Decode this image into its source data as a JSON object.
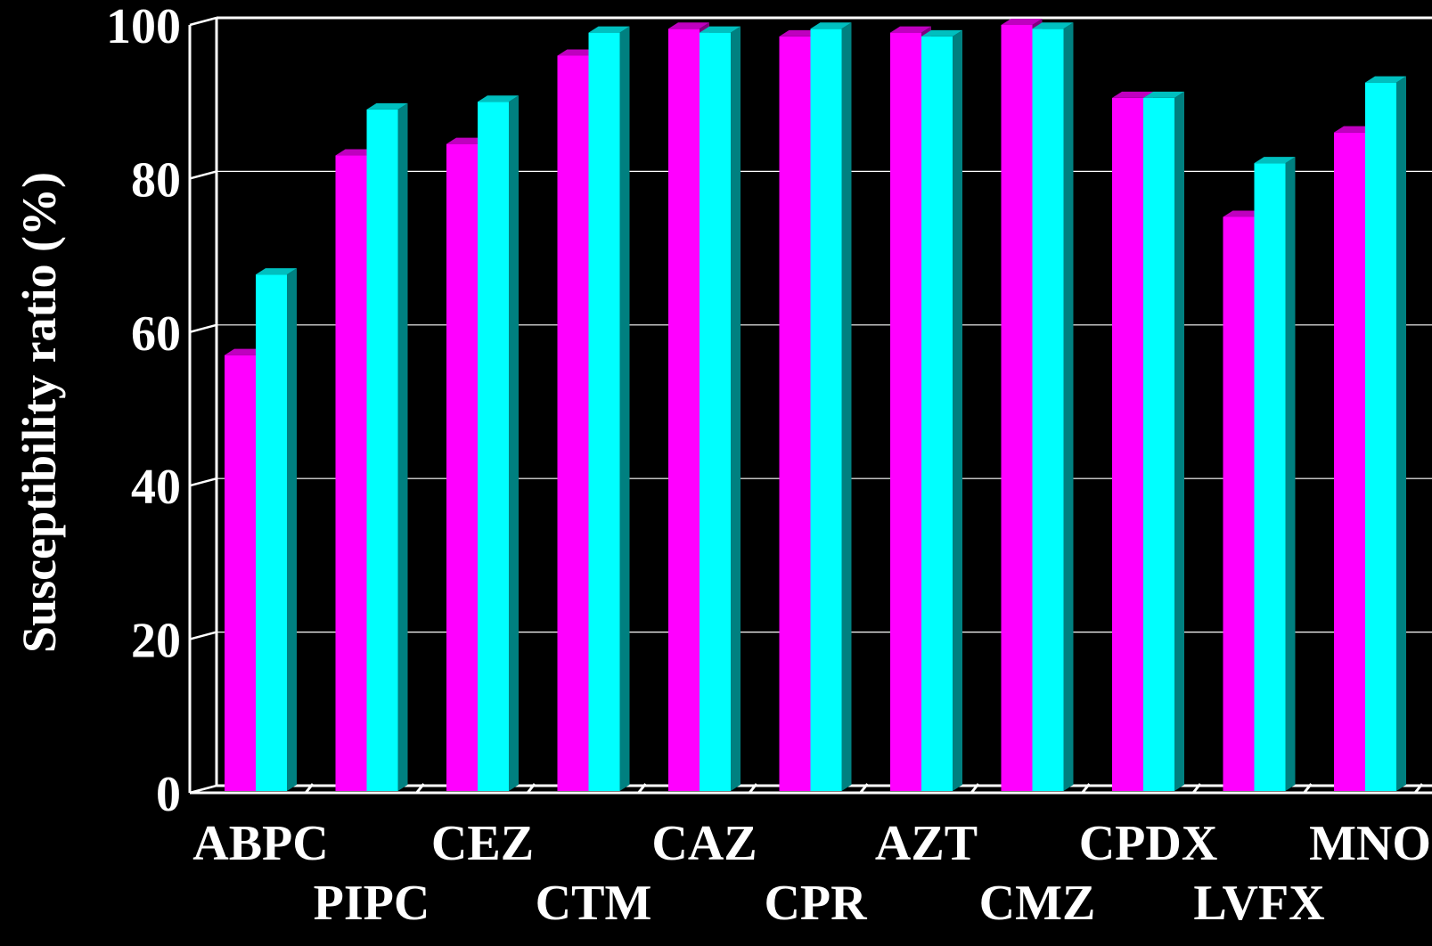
{
  "chart_data": {
    "type": "bar",
    "title": "",
    "xlabel": "",
    "ylabel": "Susceptibility ratio (%)",
    "ylim": [
      0,
      100
    ],
    "yticks": [
      "0",
      "20",
      "40",
      "60",
      "80",
      "100"
    ],
    "categories": [
      "ABPC",
      "PIPC",
      "CEZ",
      "CTM",
      "CAZ",
      "CPR",
      "AZT",
      "CMZ",
      "CPDX",
      "LVFX",
      "MNO"
    ],
    "series": [
      {
        "color": "#ff00ff",
        "values": [
          57,
          83,
          84.5,
          96,
          99.5,
          98.5,
          99,
          100,
          90.5,
          75,
          86
        ]
      },
      {
        "color": "#00ffff",
        "values": [
          67.5,
          89,
          90,
          99,
          99,
          99.5,
          98.5,
          99.5,
          90.5,
          82,
          92.5
        ]
      }
    ],
    "grid": true,
    "legend": "none"
  },
  "colors": {
    "background": "#000000",
    "axis": "#ffffff",
    "grid": "#ffffff"
  }
}
